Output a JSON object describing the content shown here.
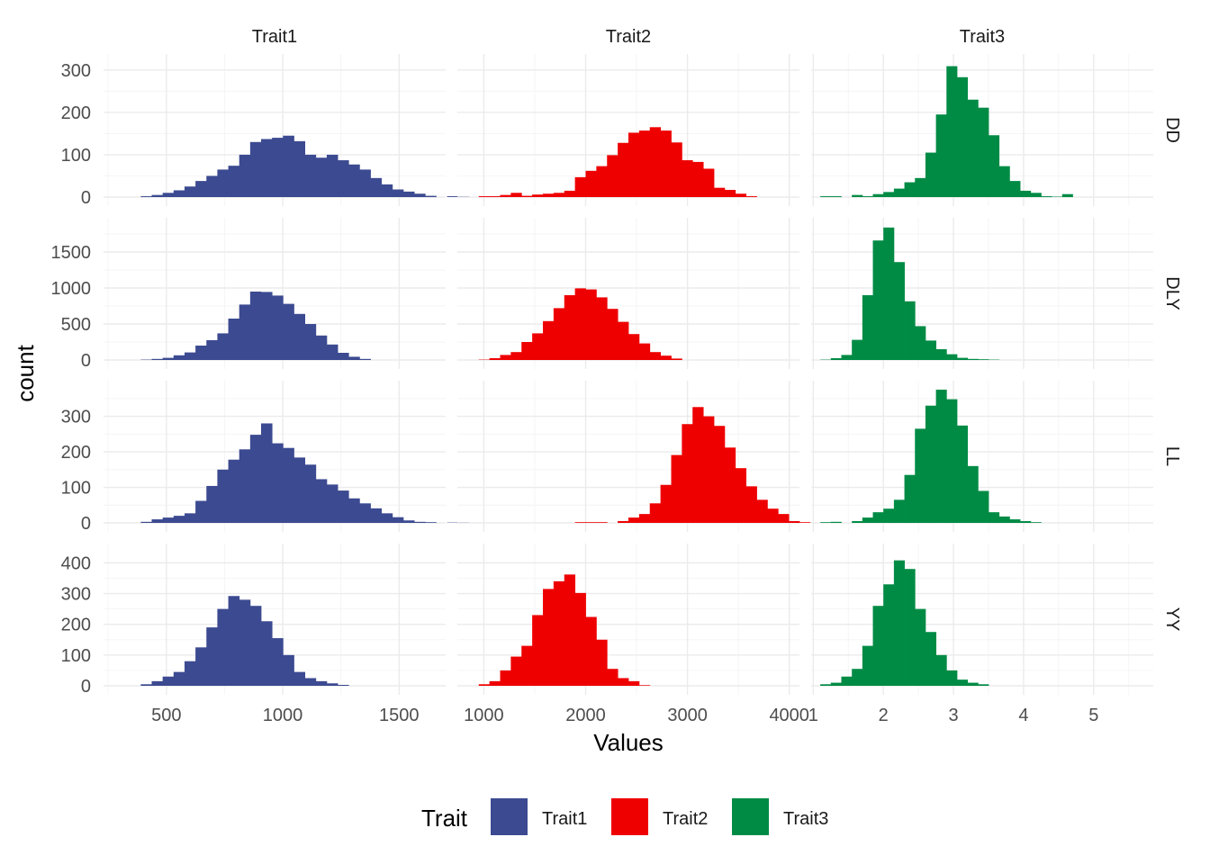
{
  "chart_data": {
    "type": "bar",
    "subtype": "faceted-histogram",
    "xlabel": "Values",
    "ylabel": "count",
    "legend": {
      "title": "Trait",
      "position": "bottom",
      "items": [
        {
          "label": "Trait1",
          "color": "#3C4A91"
        },
        {
          "label": "Trait2",
          "color": "#EE0000"
        },
        {
          "label": "Trait3",
          "color": "#008B45"
        }
      ]
    },
    "grid": true,
    "columns": [
      {
        "label": "Trait1",
        "xlim": [
          230,
          1700
        ],
        "ticks": [
          500,
          1000,
          1500
        ],
        "minor_ticks": [
          250,
          750,
          1250
        ],
        "bin_start": 390,
        "bin_width": 47
      },
      {
        "label": "Trait2",
        "xlim": [
          740,
          4100
        ],
        "ticks": [
          1000,
          2000,
          3000,
          4000
        ],
        "minor_ticks": [
          1500,
          2500,
          3500
        ],
        "bin_start": 950,
        "bin_width": 105
      },
      {
        "label": "Trait3",
        "xlim": [
          0.97,
          5.85
        ],
        "ticks": [
          1,
          2,
          3,
          4,
          5
        ],
        "minor_ticks": [
          1.5,
          2.5,
          3.5,
          4.5,
          5.5
        ],
        "bin_start": 1.1,
        "bin_width": 0.15
      }
    ],
    "rows": [
      {
        "label": "DD",
        "ylim": [
          0,
          325
        ],
        "ticks": [
          0,
          100,
          200,
          300
        ],
        "minor_ticks": [
          50,
          150,
          250
        ],
        "series": [
          [
            2,
            5,
            10,
            16,
            25,
            38,
            50,
            65,
            74,
            100,
            130,
            137,
            140,
            145,
            132,
            100,
            93,
            100,
            87,
            77,
            65,
            45,
            30,
            18,
            13,
            8,
            3,
            0,
            2,
            2
          ],
          [
            2,
            2,
            5,
            10,
            3,
            6,
            8,
            10,
            15,
            47,
            62,
            73,
            99,
            128,
            152,
            157,
            165,
            157,
            129,
            87,
            83,
            67,
            22,
            17,
            8,
            2
          ],
          [
            2,
            2,
            0,
            5,
            2,
            7,
            12,
            20,
            35,
            45,
            105,
            195,
            309,
            283,
            230,
            211,
            146,
            73,
            38,
            15,
            10,
            2,
            1,
            7
          ]
        ]
      },
      {
        "label": "DLY",
        "ylim": [
          0,
          1900
        ],
        "ticks": [
          0,
          500,
          1000,
          1500
        ],
        "minor_ticks": [
          250,
          750,
          1250,
          1750
        ],
        "series": [
          [
            5,
            15,
            30,
            65,
            105,
            200,
            275,
            370,
            575,
            770,
            950,
            945,
            895,
            780,
            640,
            500,
            340,
            215,
            100,
            45,
            15
          ],
          [
            5,
            25,
            70,
            110,
            250,
            370,
            540,
            720,
            900,
            995,
            980,
            870,
            710,
            530,
            360,
            230,
            110,
            60,
            20
          ],
          [
            5,
            25,
            70,
            280,
            900,
            1660,
            1840,
            1360,
            815,
            470,
            270,
            150,
            80,
            30,
            15,
            10,
            5
          ]
        ]
      },
      {
        "label": "LL",
        "ylim": [
          0,
          385
        ],
        "ticks": [
          0,
          100,
          200,
          300
        ],
        "minor_ticks": [
          50,
          150,
          250,
          350
        ],
        "series": [
          [
            3,
            10,
            15,
            20,
            27,
            62,
            104,
            150,
            178,
            207,
            248,
            280,
            224,
            211,
            184,
            164,
            123,
            108,
            91,
            69,
            55,
            41,
            27,
            16,
            7,
            3,
            2,
            0,
            1,
            2
          ],
          [
            0,
            0,
            0,
            0,
            0,
            0,
            0,
            0,
            0,
            2,
            2,
            2,
            0,
            5,
            15,
            25,
            55,
            107,
            191,
            278,
            326,
            300,
            273,
            212,
            154,
            103,
            65,
            40,
            25,
            5,
            2
          ],
          [
            2,
            3,
            0,
            5,
            15,
            30,
            40,
            65,
            135,
            265,
            330,
            375,
            348,
            274,
            160,
            90,
            30,
            18,
            10,
            5,
            2
          ]
        ]
      },
      {
        "label": "YY",
        "ylim": [
          0,
          445
        ],
        "ticks": [
          0,
          100,
          200,
          300,
          400
        ],
        "minor_ticks": [
          50,
          150,
          250,
          350
        ],
        "series": [
          [
            5,
            15,
            30,
            45,
            80,
            125,
            190,
            250,
            292,
            280,
            260,
            210,
            155,
            100,
            45,
            25,
            15,
            8,
            3
          ],
          [
            5,
            15,
            50,
            95,
            130,
            230,
            315,
            340,
            362,
            302,
            224,
            150,
            55,
            25,
            15,
            2
          ],
          [
            5,
            10,
            30,
            55,
            130,
            260,
            330,
            408,
            380,
            250,
            175,
            100,
            50,
            20,
            10,
            5
          ]
        ]
      }
    ]
  }
}
